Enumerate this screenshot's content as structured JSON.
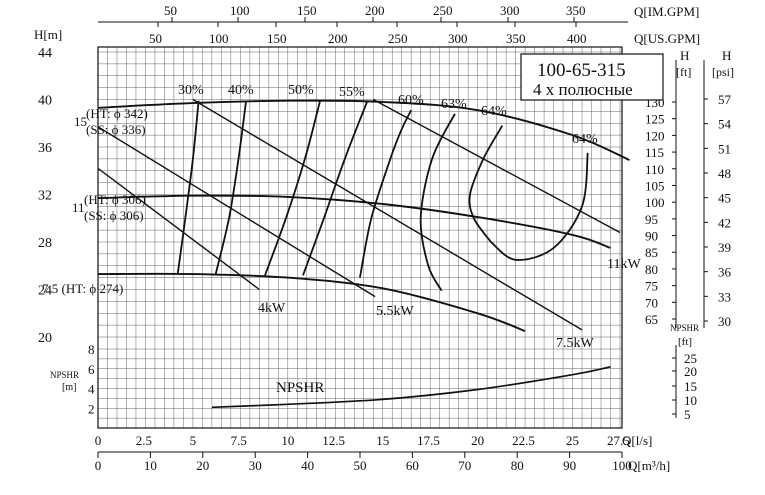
{
  "chart_data": {
    "type": "line",
    "title": "100-65-315",
    "subtitle": "4 x полюсные",
    "axes": {
      "y_left_head": {
        "label": "H[m]",
        "min": 20,
        "max": 44,
        "ticks": [
          20,
          24,
          28,
          32,
          36,
          40,
          44
        ]
      },
      "y_right_ft": {
        "label_top": "H",
        "label_unit": "[ft]",
        "min": 65,
        "max": 130,
        "ticks": [
          65,
          70,
          75,
          80,
          85,
          90,
          95,
          100,
          105,
          110,
          115,
          120,
          125,
          130
        ]
      },
      "y_right_psi": {
        "label_top": "H",
        "label_unit": "[psi]",
        "ticks": [
          30,
          33,
          36,
          39,
          42,
          45,
          48,
          51,
          54,
          57
        ]
      },
      "y_left_npshr": {
        "label": "NPSHR",
        "unit": "[m]",
        "ticks": [
          2,
          4,
          6,
          8
        ]
      },
      "y_right_npshr": {
        "label": "NPSHR",
        "unit": "[ft]",
        "ticks": [
          5,
          10,
          15,
          20,
          25
        ]
      },
      "x_ls": {
        "label": "Q[l/s]",
        "ticks": [
          "0",
          "2.5",
          "5",
          "7.5",
          "10",
          "12.5",
          "15",
          "17.5",
          "20",
          "22.5",
          "25",
          "27.5"
        ]
      },
      "x_m3h": {
        "label": "Q[m³/h]",
        "ticks": [
          "0",
          "10",
          "20",
          "30",
          "40",
          "50",
          "60",
          "70",
          "80",
          "90",
          "100"
        ]
      },
      "x_impgpm": {
        "label": "Q[IM.GPM]",
        "ticks": [
          "50",
          "100",
          "150",
          "200",
          "250",
          "300",
          "350"
        ]
      },
      "x_usgpm": {
        "label": "Q[US.GPM]",
        "ticks": [
          "50",
          "100",
          "150",
          "200",
          "250",
          "300",
          "350",
          "400"
        ]
      },
      "grid": true
    },
    "head_curves": [
      {
        "name": "15 (HT: ϕ 342)\n(SS: ϕ 336)",
        "label_lines": [
          "15",
          "(HT: ϕ 342)",
          "(SS: ϕ 336)"
        ],
        "x": [
          0,
          5,
          10,
          15,
          20,
          25,
          28
        ],
        "y": [
          39.3,
          39.7,
          39.9,
          39.8,
          39.1,
          37.0,
          34.9
        ]
      },
      {
        "name": "11 (HT: ϕ 306)\n(SS: ϕ 306)",
        "label_lines": [
          "11",
          "(HT: ϕ 306)",
          "(SS: ϕ 306)"
        ],
        "x": [
          0,
          5,
          10,
          15,
          20,
          25,
          27
        ],
        "y": [
          31.7,
          31.9,
          31.8,
          31.2,
          30.1,
          28.6,
          27.5
        ]
      },
      {
        "name": "7.5 (HT: ϕ 274)",
        "label_lines": [
          "7.5 (HT: ϕ 274)"
        ],
        "x": [
          0,
          5,
          10,
          15,
          20,
          22.5
        ],
        "y": [
          25.3,
          25.3,
          25.0,
          24.1,
          22.0,
          20.5
        ]
      }
    ],
    "power_lines": [
      {
        "name": "4kW",
        "x": [
          0,
          8.5
        ],
        "y": [
          34.2,
          24.0
        ]
      },
      {
        "name": "5.5kW",
        "x": [
          0,
          14.6
        ],
        "y": [
          37.7,
          23.4
        ]
      },
      {
        "name": "7.5kW",
        "x": [
          5,
          25.5
        ],
        "y": [
          40.0,
          20.6
        ]
      },
      {
        "name": "11kW",
        "x": [
          14.5,
          27.5
        ],
        "y": [
          40.0,
          28.8
        ]
      }
    ],
    "efficiency_curves": [
      {
        "name": "30%",
        "x": [
          4.2,
          4.6,
          5.0,
          5.3
        ],
        "y": [
          25.3,
          30.0,
          35.0,
          39.9
        ]
      },
      {
        "name": "40%",
        "x": [
          6.2,
          6.9,
          7.4,
          7.8
        ],
        "y": [
          25.3,
          30.0,
          35.0,
          39.9
        ]
      },
      {
        "name": "50%",
        "x": [
          8.8,
          9.9,
          10.9,
          11.7
        ],
        "y": [
          25.2,
          30.0,
          35.0,
          39.9
        ]
      },
      {
        "name": "55%",
        "x": [
          10.8,
          11.9,
          13.0,
          14.2
        ],
        "y": [
          25.2,
          30.0,
          35.0,
          39.9
        ]
      },
      {
        "name": "60%",
        "x": [
          13.8,
          14.4,
          15.4,
          16.0,
          16.5
        ],
        "y": [
          25.0,
          30.0,
          35.0,
          37.5,
          39.1
        ]
      },
      {
        "name": "63%",
        "x": [
          18.1,
          17.4,
          17.0,
          17.6,
          18.8
        ],
        "y": [
          23.9,
          26.0,
          30.0,
          35.0,
          38.8
        ]
      },
      {
        "name": "64%",
        "x": [
          20.7,
          19.8,
          19.6,
          20.3,
          21.3
        ],
        "y": [
          28.0,
          30.0,
          32.0,
          35.0,
          37.8
        ]
      },
      {
        "name": "64%",
        "x": [
          20.7,
          22.0,
          24.0,
          25.5,
          25.8
        ],
        "y": [
          28.0,
          26.5,
          27.5,
          31.0,
          35.5
        ]
      }
    ],
    "npshr_curve": {
      "name": "NPSHR",
      "x": [
        6,
        10,
        15,
        20,
        25,
        27
      ],
      "y": [
        2.1,
        2.4,
        2.9,
        3.9,
        5.4,
        6.2
      ]
    },
    "ranges": {
      "q_ls": [
        0,
        27.5
      ],
      "h_m": [
        20,
        44
      ],
      "npshr_m": [
        0,
        8
      ]
    }
  }
}
